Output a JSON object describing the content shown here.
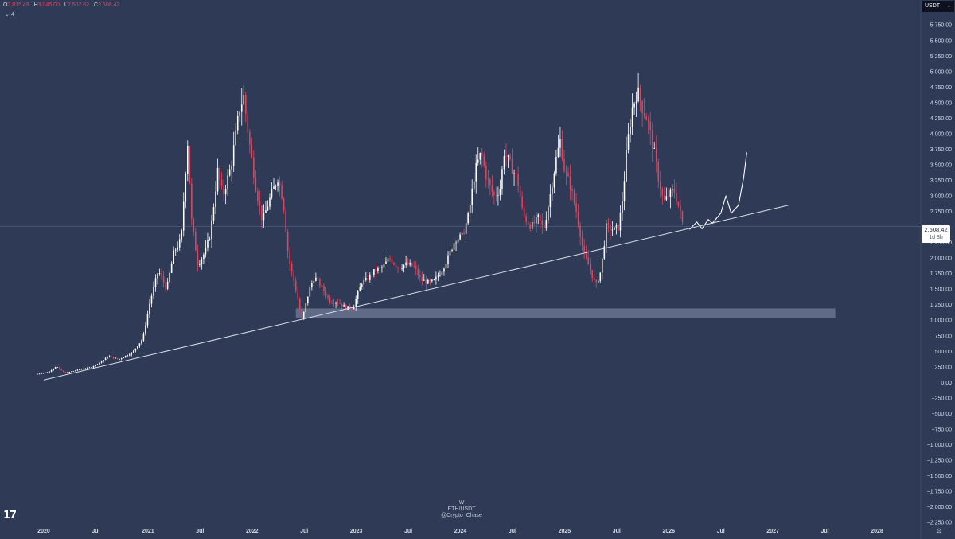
{
  "ohlc": {
    "o_label": "O",
    "o": "2,815.49",
    "h_label": "H",
    "h": "3,045.00",
    "l_label": "L",
    "l": "2,502.62",
    "c_label": "C",
    "c": "2,508.42"
  },
  "indicator_count": "4",
  "currency": "USDT",
  "last_price": {
    "value": "2,508.42",
    "countdown": "1d 8h"
  },
  "watermark": {
    "interval": "W",
    "symbol": "ETH/USDT",
    "author": "@Crypto_Chase"
  },
  "logo": "17",
  "colors": {
    "background": "#2e3a56",
    "up": "#ffffff",
    "down": "#e0455f",
    "trendline": "#d9dde6",
    "zone": "#8a94b0"
  },
  "chart_data": {
    "type": "candlestick",
    "interval": "W",
    "symbol": "ETH/USDT",
    "y_ticks": [
      "6,000.00",
      "5,750.00",
      "5,500.00",
      "5,250.00",
      "5,000.00",
      "4,750.00",
      "4,500.00",
      "4,250.00",
      "4,000.00",
      "3,750.00",
      "3,500.00",
      "3,250.00",
      "3,000.00",
      "2,750.00",
      "2,250.00",
      "2,000.00",
      "1,750.00",
      "1,500.00",
      "1,250.00",
      "1,000.00",
      "750.00",
      "500.00",
      "250.00",
      "0.00",
      "−250.00",
      "−500.00",
      "−750.00",
      "−1,000.00",
      "−1,250.00",
      "−1,500.00",
      "−1,750.00",
      "−2,000.00",
      "−2,250.00"
    ],
    "y_tick_values": [
      6000,
      5750,
      5500,
      5250,
      5000,
      4750,
      4500,
      4250,
      4000,
      3750,
      3500,
      3250,
      3000,
      2750,
      2250,
      2000,
      1750,
      1500,
      1250,
      1000,
      750,
      500,
      250,
      0,
      -250,
      -500,
      -750,
      -1000,
      -1250,
      -1500,
      -1750,
      -2000,
      -2250
    ],
    "x_ticks": [
      "2020",
      "Jul",
      "2021",
      "Jul",
      "2022",
      "Jul",
      "2023",
      "Jul",
      "2024",
      "Jul",
      "2025",
      "Jul",
      "2026",
      "Jul",
      "2027",
      "Jul",
      "2028"
    ],
    "x_tick_dates": [
      2020.0,
      2020.5,
      2021.0,
      2021.5,
      2022.0,
      2022.5,
      2023.0,
      2023.5,
      2024.0,
      2024.5,
      2025.0,
      2025.5,
      2026.0,
      2026.5,
      2027.0,
      2027.5,
      2028.0
    ],
    "x_range": [
      2019.58,
      2028.42
    ],
    "y_range": [
      -2300,
      6150
    ],
    "price_path": [
      [
        2019.92,
        130
      ],
      [
        2020.05,
        170
      ],
      [
        2020.12,
        260
      ],
      [
        2020.2,
        150
      ],
      [
        2020.35,
        210
      ],
      [
        2020.45,
        240
      ],
      [
        2020.55,
        330
      ],
      [
        2020.62,
        420
      ],
      [
        2020.72,
        370
      ],
      [
        2020.85,
        480
      ],
      [
        2020.95,
        700
      ],
      [
        2021.02,
        1300
      ],
      [
        2021.1,
        1800
      ],
      [
        2021.18,
        1500
      ],
      [
        2021.25,
        2100
      ],
      [
        2021.32,
        2300
      ],
      [
        2021.38,
        3900
      ],
      [
        2021.42,
        2600
      ],
      [
        2021.48,
        1900
      ],
      [
        2021.55,
        2100
      ],
      [
        2021.6,
        2400
      ],
      [
        2021.67,
        3400
      ],
      [
        2021.72,
        3000
      ],
      [
        2021.8,
        3500
      ],
      [
        2021.88,
        4400
      ],
      [
        2021.92,
        4600
      ],
      [
        2021.97,
        3900
      ],
      [
        2022.04,
        3100
      ],
      [
        2022.1,
        2600
      ],
      [
        2022.18,
        3000
      ],
      [
        2022.25,
        3300
      ],
      [
        2022.3,
        2900
      ],
      [
        2022.35,
        2000
      ],
      [
        2022.42,
        1500
      ],
      [
        2022.48,
        1000
      ],
      [
        2022.55,
        1500
      ],
      [
        2022.6,
        1700
      ],
      [
        2022.68,
        1500
      ],
      [
        2022.75,
        1300
      ],
      [
        2022.82,
        1300
      ],
      [
        2022.9,
        1200
      ],
      [
        2022.97,
        1200
      ],
      [
        2023.05,
        1600
      ],
      [
        2023.1,
        1650
      ],
      [
        2023.18,
        1800
      ],
      [
        2023.25,
        1850
      ],
      [
        2023.32,
        2000
      ],
      [
        2023.4,
        1850
      ],
      [
        2023.48,
        1900
      ],
      [
        2023.55,
        1870
      ],
      [
        2023.62,
        1650
      ],
      [
        2023.7,
        1600
      ],
      [
        2023.75,
        1630
      ],
      [
        2023.82,
        1800
      ],
      [
        2023.88,
        2000
      ],
      [
        2023.95,
        2300
      ],
      [
        2024.02,
        2350
      ],
      [
        2024.08,
        2700
      ],
      [
        2024.14,
        3400
      ],
      [
        2024.2,
        3700
      ],
      [
        2024.25,
        3300
      ],
      [
        2024.32,
        3000
      ],
      [
        2024.38,
        3100
      ],
      [
        2024.42,
        3700
      ],
      [
        2024.48,
        3500
      ],
      [
        2024.55,
        3250
      ],
      [
        2024.6,
        2700
      ],
      [
        2024.68,
        2500
      ],
      [
        2024.75,
        2650
      ],
      [
        2024.8,
        2450
      ],
      [
        2024.86,
        3000
      ],
      [
        2024.92,
        3600
      ],
      [
        2024.96,
        3900
      ],
      [
        2025.0,
        3400
      ],
      [
        2025.05,
        3200
      ],
      [
        2025.12,
        2700
      ],
      [
        2025.18,
        2100
      ],
      [
        2025.25,
        1800
      ],
      [
        2025.3,
        1550
      ],
      [
        2025.35,
        1800
      ],
      [
        2025.4,
        2500
      ],
      [
        2025.48,
        2450
      ],
      [
        2025.52,
        2500
      ],
      [
        2025.56,
        3000
      ],
      [
        2025.6,
        3800
      ],
      [
        2025.65,
        4400
      ],
      [
        2025.7,
        4700
      ],
      [
        2025.75,
        4400
      ],
      [
        2025.8,
        4200
      ],
      [
        2025.86,
        3700
      ],
      [
        2025.9,
        3300
      ],
      [
        2025.95,
        2900
      ],
      [
        2026.0,
        3000
      ],
      [
        2026.05,
        3100
      ],
      [
        2026.1,
        2800
      ],
      [
        2026.14,
        2508
      ]
    ],
    "trendline": {
      "from": [
        2020.0,
        40
      ],
      "to": [
        2027.15,
        2850
      ]
    },
    "support_zone": {
      "x0": 2022.42,
      "x1": 2027.6,
      "y0": 1030,
      "y1": 1190
    },
    "projection": [
      [
        2026.2,
        2460
      ],
      [
        2026.27,
        2580
      ],
      [
        2026.32,
        2470
      ],
      [
        2026.38,
        2620
      ],
      [
        2026.42,
        2560
      ],
      [
        2026.5,
        2720
      ],
      [
        2026.55,
        3000
      ],
      [
        2026.6,
        2720
      ],
      [
        2026.67,
        2850
      ],
      [
        2026.72,
        3300
      ],
      [
        2026.75,
        3700
      ]
    ],
    "last_price_value": 2508.42
  }
}
